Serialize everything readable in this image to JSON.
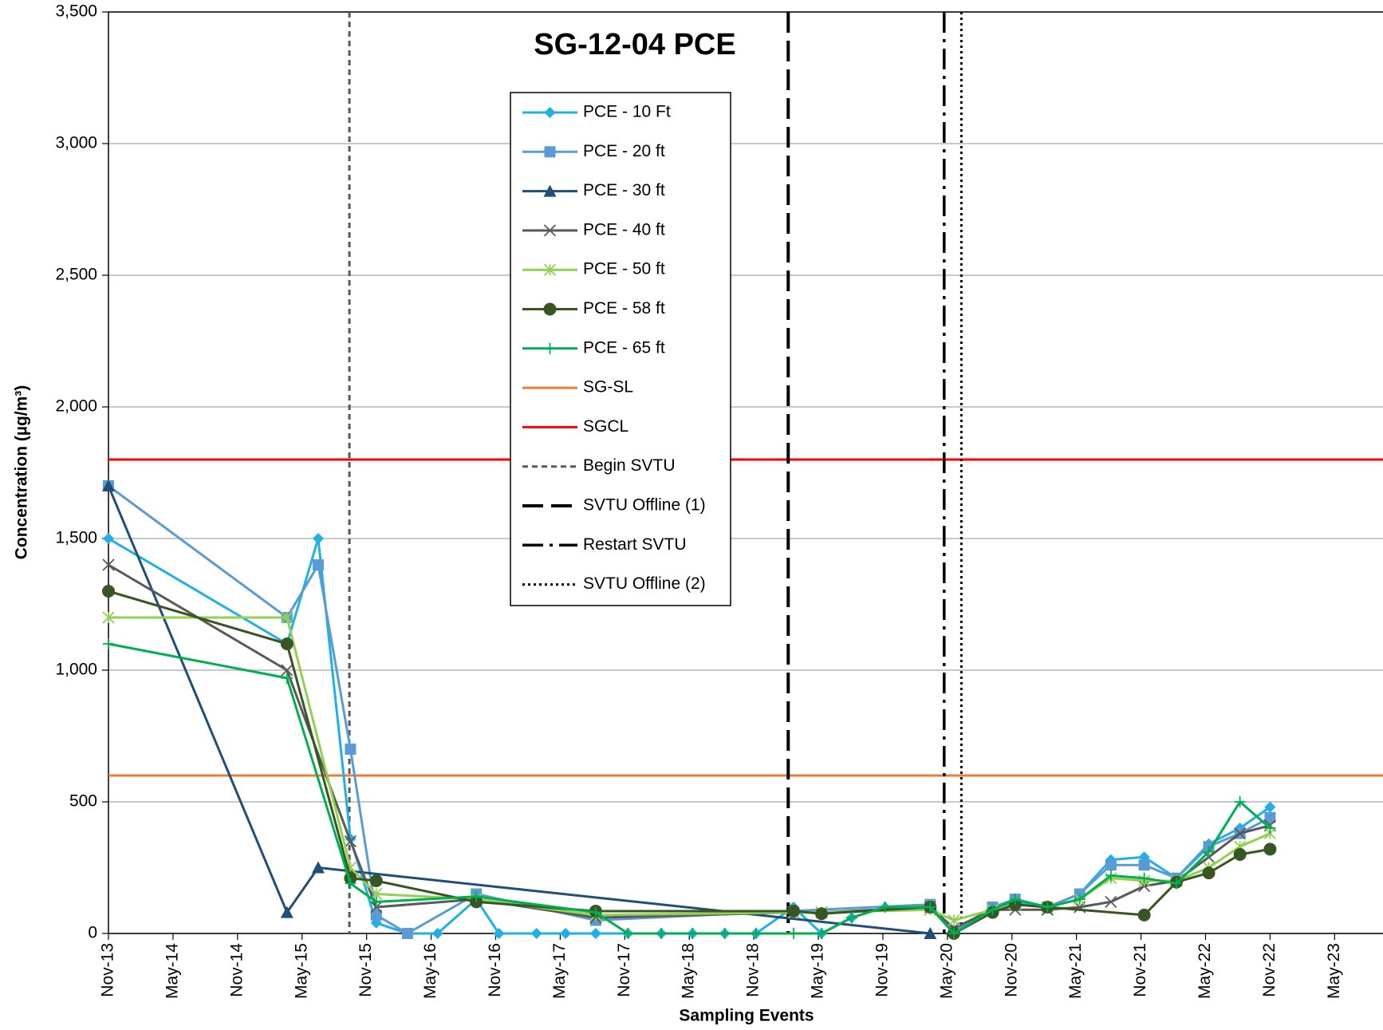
{
  "chart_data": {
    "type": "line",
    "title": "SG-12-04 PCE",
    "x_label": "Sampling Events",
    "y_label": "Concentration (µg/m³)",
    "xlim": [
      0,
      118.5
    ],
    "ylim": [
      0,
      3500
    ],
    "yticks": [
      0,
      500,
      {
        "value": 1000,
        "label": "1,000"
      },
      {
        "value": 1500,
        "label": "1,500"
      },
      {
        "value": 2000,
        "label": "2,000"
      },
      {
        "value": 2500,
        "label": "2,500"
      },
      {
        "value": 3000,
        "label": "3,000"
      },
      {
        "value": 3500,
        "label": "3,500"
      }
    ],
    "xticks": [
      {
        "value": 0,
        "label": "Nov-13"
      },
      {
        "value": 6,
        "label": "May-14"
      },
      {
        "value": 12,
        "label": "Nov-14"
      },
      {
        "value": 18,
        "label": "May-15"
      },
      {
        "value": 24,
        "label": "Nov-15"
      },
      {
        "value": 30,
        "label": "May-16"
      },
      {
        "value": 36,
        "label": "Nov-16"
      },
      {
        "value": 42,
        "label": "May-17"
      },
      {
        "value": 48,
        "label": "Nov-17"
      },
      {
        "value": 54,
        "label": "May-18"
      },
      {
        "value": 60,
        "label": "Nov-18"
      },
      {
        "value": 66,
        "label": "May-19"
      },
      {
        "value": 72,
        "label": "Nov-19"
      },
      {
        "value": 78,
        "label": "May-20"
      },
      {
        "value": 84,
        "label": "Nov-20"
      },
      {
        "value": 90,
        "label": "May-21"
      },
      {
        "value": 96,
        "label": "Nov-21"
      },
      {
        "value": 102,
        "label": "May-22"
      },
      {
        "value": 108,
        "label": "Nov-22"
      },
      {
        "value": 114,
        "label": "May-23"
      }
    ],
    "grid": true,
    "series": [
      {
        "name": "PCE - 10 Ft",
        "color": "#1fb0e6",
        "marker": "diamond",
        "x": [
          0,
          16.6,
          19.5,
          22.5,
          24.9,
          27.8,
          30.6,
          34.2,
          36.3,
          39.8,
          42.5,
          45.3,
          48.3,
          51.4,
          54.3,
          57.3,
          60.2,
          63.7,
          66.3,
          69.1,
          72.2,
          76.4,
          78.6,
          82.2,
          84.3,
          87.3,
          90.3,
          93.2,
          96.3,
          99.3,
          102.3,
          105.2,
          108
        ],
        "values": [
          1500,
          1100,
          1500,
          360,
          40,
          0,
          0,
          130,
          0,
          0,
          0,
          0,
          0,
          0,
          0,
          0,
          0,
          100,
          0,
          60,
          100,
          110,
          0,
          90,
          120,
          100,
          150,
          280,
          290,
          210,
          340,
          400,
          480
        ]
      },
      {
        "name": "PCE - 20 ft",
        "color": "#5b9bd5",
        "marker": "square",
        "x": [
          0,
          16.6,
          19.5,
          22.5,
          24.9,
          27.8,
          34.2,
          45.3,
          76.4,
          78.6,
          82.2,
          84.3,
          87.3,
          90.3,
          93.2,
          96.3,
          99.3,
          102.3,
          105.2,
          108
        ],
        "values": [
          1700,
          1200,
          1400,
          700,
          70,
          0,
          150,
          50,
          110,
          10,
          100,
          130,
          100,
          150,
          260,
          260,
          210,
          330,
          380,
          440
        ]
      },
      {
        "name": "PCE - 30 ft",
        "color": "#1f4e79",
        "marker": "triangle",
        "x": [
          0,
          16.6,
          19.5,
          76.4
        ],
        "values": [
          1700,
          80,
          250,
          0
        ]
      },
      {
        "name": "PCE - 40 ft",
        "color": "#595959",
        "marker": "x",
        "x": [
          0,
          16.6,
          22.5,
          24.9,
          34.2,
          45.3,
          63.7,
          66.3,
          76.4,
          78.6,
          82.2,
          84.3,
          87.3,
          90.3,
          93.2,
          96.3,
          99.3,
          102.3,
          105.2,
          108
        ],
        "values": [
          1400,
          1000,
          350,
          100,
          130,
          60,
          80,
          80,
          100,
          20,
          90,
          90,
          90,
          100,
          120,
          180,
          200,
          290,
          380,
          410
        ]
      },
      {
        "name": "PCE - 50 ft",
        "color": "#92d050",
        "marker": "asterisk",
        "x": [
          0,
          16.6,
          22.5,
          24.9,
          34.2,
          45.3,
          63.7,
          66.3,
          76.4,
          78.6,
          82.2,
          84.3,
          87.3,
          90.3,
          93.2,
          96.3,
          99.3,
          102.3,
          105.2,
          108
        ],
        "values": [
          1200,
          1200,
          250,
          150,
          130,
          70,
          80,
          80,
          90,
          50,
          90,
          110,
          100,
          130,
          210,
          200,
          200,
          250,
          330,
          380
        ]
      },
      {
        "name": "PCE - 58 ft",
        "color": "#375623",
        "marker": "circle",
        "x": [
          0,
          16.6,
          22.5,
          24.9,
          34.2,
          45.3,
          63.7,
          66.3,
          76.4,
          78.6,
          82.2,
          84.3,
          87.3,
          96.3,
          99.3,
          102.3,
          105.2,
          108
        ],
        "values": [
          1300,
          1100,
          210,
          200,
          120,
          85,
          85,
          75,
          100,
          0,
          80,
          110,
          100,
          70,
          195,
          230,
          300,
          320
        ]
      },
      {
        "name": "PCE - 65 ft",
        "color": "#00b050",
        "marker": "plus",
        "x": [
          0,
          16.6,
          22.5,
          24.9,
          34.2,
          45.3,
          48.3,
          51.4,
          54.3,
          57.3,
          60.2,
          63.7,
          66.3,
          69.1,
          72.2,
          76.4,
          78.6,
          82.2,
          84.3,
          87.3,
          90.3,
          93.2,
          96.3,
          99.3,
          102.3,
          105.2,
          108
        ],
        "values": [
          1100,
          970,
          190,
          120,
          140,
          80,
          0,
          0,
          0,
          0,
          0,
          0,
          0,
          60,
          100,
          100,
          0,
          90,
          130,
          100,
          130,
          220,
          210,
          190,
          310,
          500,
          400
        ]
      }
    ],
    "hlines": [
      {
        "name": "SG-SL",
        "color": "#ed7d31",
        "value": 600
      },
      {
        "name": "SGCL",
        "color": "#ff0000",
        "value": 1800
      }
    ],
    "vlines": [
      {
        "name": "Begin SVTU",
        "color": "#595959",
        "dash": "short",
        "x": 22.4
      },
      {
        "name": "SVTU Offline (1)",
        "color": "#000000",
        "dash": "long",
        "x": 63.2
      },
      {
        "name": "Restart SVTU",
        "color": "#000000",
        "dash": "dashdot",
        "x": 77.7
      },
      {
        "name": "SVTU Offline (2)",
        "color": "#000000",
        "dash": "dotted",
        "x": 79.3
      }
    ]
  }
}
